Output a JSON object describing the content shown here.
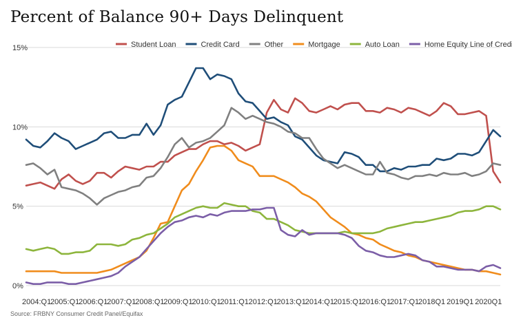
{
  "chart_data": {
    "type": "line",
    "title": "Percent of Balance 90+ Days Delinquent",
    "source": "Source: FRBNY Consumer Credit Panel/Equifax",
    "xlabel": "",
    "ylabel": "",
    "ylim": [
      0,
      15
    ],
    "y_ticks": [
      0,
      5,
      10,
      15
    ],
    "y_tick_labels": [
      "0%",
      "5%",
      "10%",
      "15%"
    ],
    "grid": true,
    "legend_position": "top-right",
    "x_tick_labels": [
      "2004:Q1",
      "2005:Q1",
      "2006:Q1",
      "2007:Q1",
      "2008:Q1",
      "2009:Q1",
      "2010:Q1",
      "2011:Q1",
      "2012:Q1",
      "2013:Q1",
      "2014:Q1",
      "2015:Q1",
      "2016:Q1",
      "2017:Q1",
      "2018Q1",
      "2019Q1",
      "2020Q1"
    ],
    "x_tick_indices": [
      0,
      4,
      8,
      12,
      16,
      20,
      24,
      28,
      32,
      36,
      40,
      44,
      48,
      52,
      56,
      60,
      64
    ],
    "num_points": 68,
    "series": [
      {
        "name": "Student Loan",
        "color": "#c0504d",
        "values": [
          6.3,
          6.4,
          6.5,
          6.3,
          6.1,
          6.7,
          7.0,
          6.6,
          6.4,
          6.6,
          7.1,
          7.1,
          6.8,
          7.2,
          7.5,
          7.4,
          7.3,
          7.5,
          7.5,
          7.8,
          7.8,
          8.2,
          8.4,
          8.6,
          8.6,
          8.9,
          9.1,
          9.1,
          8.9,
          9.0,
          8.8,
          8.5,
          8.7,
          8.9,
          10.9,
          11.7,
          11.1,
          10.9,
          11.8,
          11.5,
          11.0,
          10.9,
          11.1,
          11.3,
          11.1,
          11.4,
          11.5,
          11.5,
          11.0,
          11.0,
          10.9,
          11.2,
          11.1,
          10.9,
          11.2,
          11.1,
          10.9,
          10.7,
          11.0,
          11.5,
          11.3,
          10.8,
          10.8,
          10.9,
          11.0,
          10.7,
          7.2,
          6.5
        ]
      },
      {
        "name": "Credit Card",
        "color": "#1f4e79",
        "values": [
          9.2,
          8.8,
          8.7,
          9.1,
          9.6,
          9.3,
          9.1,
          8.6,
          8.8,
          9.0,
          9.2,
          9.6,
          9.7,
          9.3,
          9.3,
          9.5,
          9.5,
          10.2,
          9.5,
          10.1,
          11.4,
          11.7,
          11.9,
          12.8,
          13.7,
          13.7,
          13.0,
          13.3,
          13.2,
          13.0,
          12.1,
          11.6,
          11.5,
          11.0,
          10.5,
          10.6,
          10.3,
          10.1,
          9.4,
          9.2,
          8.7,
          8.2,
          7.9,
          7.8,
          7.7,
          8.4,
          8.3,
          8.1,
          7.6,
          7.6,
          7.2,
          7.2,
          7.4,
          7.3,
          7.5,
          7.5,
          7.6,
          7.6,
          8.0,
          7.9,
          8.0,
          8.3,
          8.3,
          8.2,
          8.4,
          9.1,
          9.8,
          9.4
        ]
      },
      {
        "name": "Other",
        "color": "#808080",
        "values": [
          7.6,
          7.7,
          7.4,
          7.0,
          7.3,
          6.2,
          6.1,
          6.0,
          5.8,
          5.5,
          5.1,
          5.5,
          5.7,
          5.9,
          6.0,
          6.2,
          6.3,
          6.8,
          6.9,
          7.4,
          8.1,
          8.9,
          9.3,
          8.7,
          9.0,
          9.1,
          9.3,
          9.7,
          10.1,
          11.2,
          10.9,
          10.5,
          10.7,
          10.5,
          10.3,
          10.2,
          10.0,
          9.7,
          9.6,
          9.3,
          9.3,
          8.6,
          8.0,
          7.7,
          7.4,
          7.6,
          7.4,
          7.2,
          7.0,
          7.0,
          7.8,
          7.1,
          7.0,
          6.8,
          6.7,
          6.9,
          6.9,
          7.0,
          6.9,
          7.1,
          7.0,
          7.0,
          7.1,
          6.9,
          7.0,
          7.2,
          7.7,
          7.6
        ]
      },
      {
        "name": "Mortgage",
        "color": "#f08c1c",
        "values": [
          0.9,
          0.9,
          0.9,
          0.9,
          0.9,
          0.8,
          0.8,
          0.8,
          0.8,
          0.8,
          0.8,
          0.9,
          1.0,
          1.2,
          1.4,
          1.6,
          1.8,
          2.2,
          3.0,
          3.9,
          4.0,
          5.0,
          6.0,
          6.4,
          7.2,
          7.9,
          8.7,
          8.8,
          8.8,
          8.5,
          7.9,
          7.7,
          7.5,
          6.9,
          6.9,
          6.9,
          6.7,
          6.5,
          6.2,
          5.8,
          5.6,
          5.3,
          4.8,
          4.3,
          4.0,
          3.7,
          3.3,
          3.2,
          3.0,
          2.9,
          2.6,
          2.4,
          2.2,
          2.1,
          1.9,
          1.8,
          1.6,
          1.5,
          1.4,
          1.3,
          1.2,
          1.1,
          1.0,
          1.0,
          0.9,
          0.9,
          0.8,
          0.7
        ]
      },
      {
        "name": "Auto Loan",
        "color": "#8db53c",
        "values": [
          2.3,
          2.2,
          2.3,
          2.4,
          2.3,
          2.0,
          2.0,
          2.1,
          2.1,
          2.2,
          2.6,
          2.6,
          2.6,
          2.5,
          2.6,
          2.9,
          3.0,
          3.2,
          3.3,
          3.6,
          3.9,
          4.3,
          4.5,
          4.7,
          4.9,
          5.0,
          4.9,
          4.9,
          5.2,
          5.1,
          5.0,
          5.0,
          4.7,
          4.6,
          4.2,
          4.2,
          4.0,
          3.8,
          3.5,
          3.4,
          3.3,
          3.3,
          3.3,
          3.3,
          3.3,
          3.4,
          3.3,
          3.3,
          3.3,
          3.3,
          3.4,
          3.6,
          3.7,
          3.8,
          3.9,
          4.0,
          4.0,
          4.1,
          4.2,
          4.3,
          4.4,
          4.6,
          4.7,
          4.7,
          4.8,
          5.0,
          5.0,
          4.8
        ]
      },
      {
        "name": "Home Equity Line of Credit",
        "color": "#7b5ea7",
        "values": [
          0.2,
          0.1,
          0.1,
          0.2,
          0.2,
          0.2,
          0.1,
          0.1,
          0.2,
          0.3,
          0.4,
          0.5,
          0.6,
          0.8,
          1.2,
          1.5,
          1.8,
          2.3,
          2.8,
          3.3,
          3.7,
          4.0,
          4.1,
          4.3,
          4.4,
          4.3,
          4.5,
          4.4,
          4.6,
          4.7,
          4.7,
          4.7,
          4.8,
          4.8,
          4.9,
          4.9,
          3.5,
          3.2,
          3.1,
          3.5,
          3.2,
          3.3,
          3.3,
          3.3,
          3.3,
          3.2,
          3.0,
          2.5,
          2.2,
          2.1,
          1.9,
          1.8,
          1.8,
          1.9,
          2.0,
          1.9,
          1.6,
          1.5,
          1.2,
          1.2,
          1.1,
          1.0,
          1.0,
          1.0,
          0.9,
          1.2,
          1.3,
          1.1
        ]
      }
    ]
  }
}
